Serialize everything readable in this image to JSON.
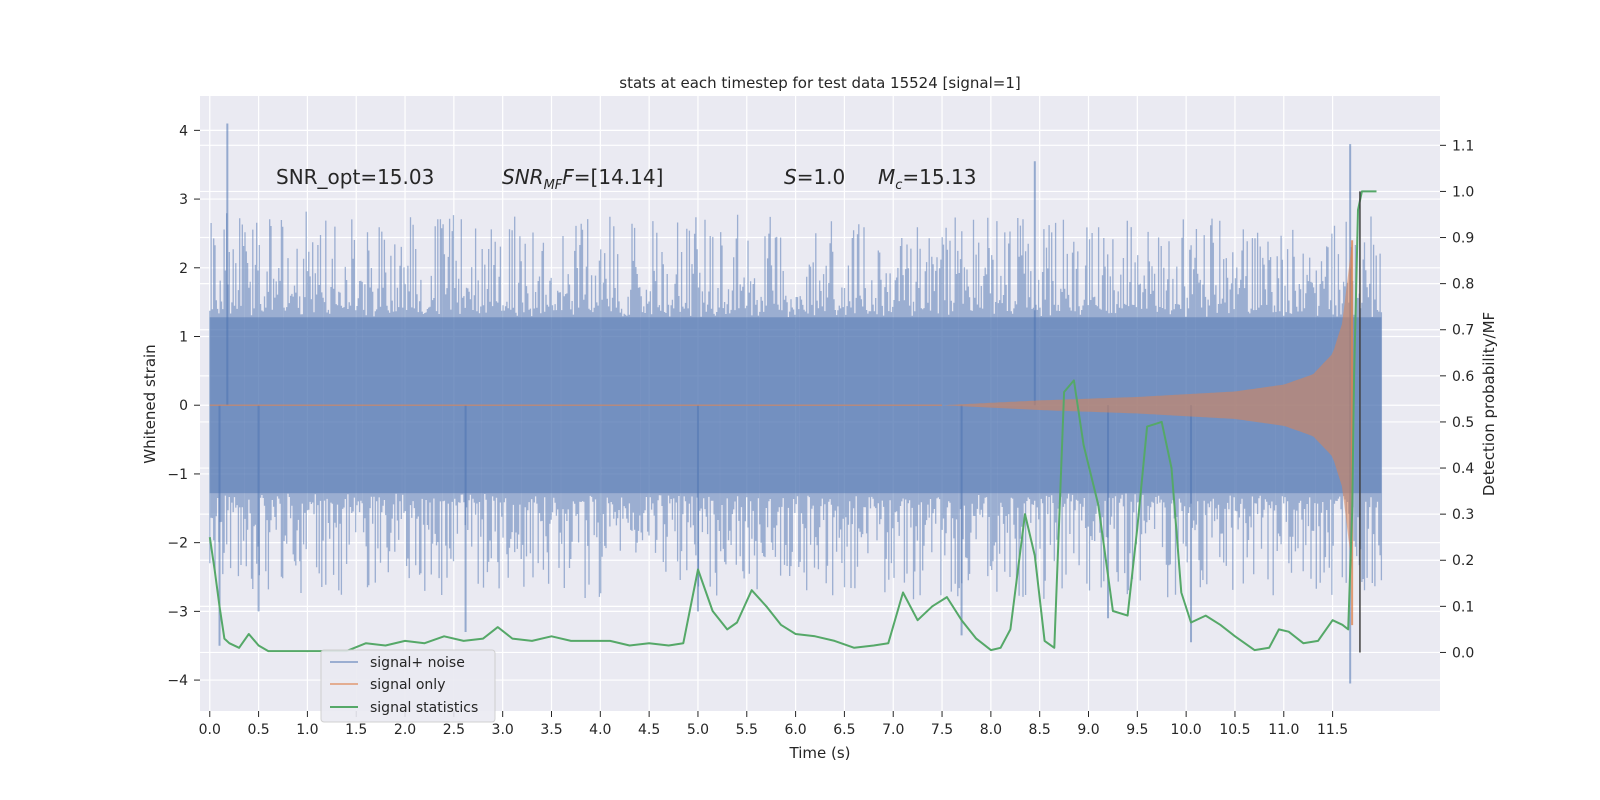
{
  "chart_data": {
    "type": "line",
    "title": "stats at each timestep for test data 15524 [signal=1]",
    "xlabel": "Time (s)",
    "ylabel_left": "Whitened strain",
    "ylabel_right": "Detection probability/MF",
    "xlim": [
      -0.1,
      12.6
    ],
    "ylim_left": [
      -4.45,
      4.5
    ],
    "ylim_right": [
      -0.127,
      1.207
    ],
    "x_ticks": [
      "0.0",
      "0.5",
      "1.0",
      "1.5",
      "2.0",
      "2.5",
      "3.0",
      "3.5",
      "4.0",
      "4.5",
      "5.0",
      "5.5",
      "6.0",
      "6.5",
      "7.0",
      "7.5",
      "8.0",
      "8.5",
      "9.0",
      "9.5",
      "10.0",
      "10.5",
      "11.0",
      "11.5"
    ],
    "y_ticks_left": [
      "4",
      "3",
      "2",
      "1",
      "0",
      "−1",
      "−2",
      "−3",
      "−4"
    ],
    "y_ticks_right": [
      "1.1",
      "1.0",
      "0.9",
      "0.8",
      "0.7",
      "0.6",
      "0.5",
      "0.4",
      "0.3",
      "0.2",
      "0.1",
      "0.0"
    ],
    "grid": true,
    "legend_position": "lower-left",
    "annotations": {
      "snr_opt": "SNR_opt=15.03",
      "snr_mf_main": "SNR",
      "snr_mf_sub": "MF",
      "snr_mf_tail": "=[14.14]",
      "s_main": "S",
      "s_tail": "=1.0",
      "mc_main": "M",
      "mc_sub": "c",
      "mc_tail": "=15.13"
    },
    "series": [
      {
        "name": "signal+ noise",
        "color": "#4c72b0",
        "axis": "left",
        "x_range": [
          0.0,
          12.0
        ],
        "core_amplitude": 1.28,
        "typical_peak_amplitude": 2.1,
        "notable_peaks": [
          {
            "x": 0.18,
            "y": 4.1
          },
          {
            "x": 0.5,
            "y": -3.0
          },
          {
            "x": 2.62,
            "y": -3.3
          },
          {
            "x": 5.0,
            "y": -3.0
          },
          {
            "x": 7.7,
            "y": -3.35
          },
          {
            "x": 8.45,
            "y": 3.55
          },
          {
            "x": 9.2,
            "y": -3.1
          },
          {
            "x": 10.05,
            "y": -3.45
          },
          {
            "x": 11.68,
            "y": 3.8
          },
          {
            "x": 11.68,
            "y": -4.05
          },
          {
            "x": 0.1,
            "y": -3.5
          }
        ]
      },
      {
        "name": "signal only",
        "color": "#dd8452",
        "axis": "left",
        "x_range": [
          7.5,
          11.75
        ],
        "envelope": {
          "x": [
            7.5,
            8.5,
            9.5,
            10.5,
            11.0,
            11.3,
            11.5,
            11.6,
            11.65,
            11.7
          ],
          "amplitude": [
            0.0,
            0.07,
            0.12,
            0.2,
            0.3,
            0.45,
            0.75,
            1.2,
            1.8,
            2.4
          ]
        }
      },
      {
        "name": "signal statistics",
        "color": "#55a868",
        "axis": "right",
        "x": [
          0.0,
          0.05,
          0.1,
          0.15,
          0.2,
          0.3,
          0.4,
          0.5,
          0.6,
          0.75,
          0.9,
          1.0,
          1.2,
          1.4,
          1.6,
          1.8,
          2.0,
          2.2,
          2.4,
          2.6,
          2.8,
          2.95,
          3.1,
          3.3,
          3.5,
          3.7,
          3.9,
          4.1,
          4.3,
          4.5,
          4.7,
          4.85,
          5.0,
          5.15,
          5.3,
          5.4,
          5.55,
          5.7,
          5.85,
          6.0,
          6.2,
          6.4,
          6.6,
          6.8,
          6.95,
          7.1,
          7.25,
          7.4,
          7.55,
          7.7,
          7.85,
          8.0,
          8.1,
          8.2,
          8.35,
          8.45,
          8.55,
          8.65,
          8.75,
          8.85,
          8.95,
          9.1,
          9.25,
          9.4,
          9.5,
          9.6,
          9.75,
          9.85,
          9.95,
          10.05,
          10.2,
          10.35,
          10.5,
          10.7,
          10.85,
          10.95,
          11.05,
          11.2,
          11.35,
          11.5,
          11.6,
          11.66,
          11.7,
          11.72,
          11.76,
          11.8,
          11.85,
          11.9,
          11.95
        ],
        "y": [
          0.25,
          0.18,
          0.1,
          0.03,
          0.02,
          0.01,
          0.04,
          0.015,
          0.003,
          0.003,
          0.003,
          0.003,
          0.003,
          0.003,
          0.02,
          0.015,
          0.025,
          0.02,
          0.035,
          0.025,
          0.03,
          0.055,
          0.03,
          0.025,
          0.035,
          0.025,
          0.025,
          0.025,
          0.015,
          0.02,
          0.015,
          0.02,
          0.18,
          0.09,
          0.05,
          0.065,
          0.135,
          0.1,
          0.06,
          0.04,
          0.035,
          0.025,
          0.01,
          0.015,
          0.02,
          0.13,
          0.07,
          0.1,
          0.12,
          0.07,
          0.03,
          0.005,
          0.01,
          0.05,
          0.3,
          0.21,
          0.025,
          0.01,
          0.565,
          0.59,
          0.45,
          0.32,
          0.09,
          0.08,
          0.27,
          0.49,
          0.5,
          0.4,
          0.13,
          0.065,
          0.08,
          0.06,
          0.035,
          0.005,
          0.01,
          0.05,
          0.045,
          0.02,
          0.025,
          0.07,
          0.06,
          0.05,
          0.3,
          0.6,
          0.96,
          1.0,
          1.0,
          1.0,
          1.0
        ]
      }
    ]
  }
}
